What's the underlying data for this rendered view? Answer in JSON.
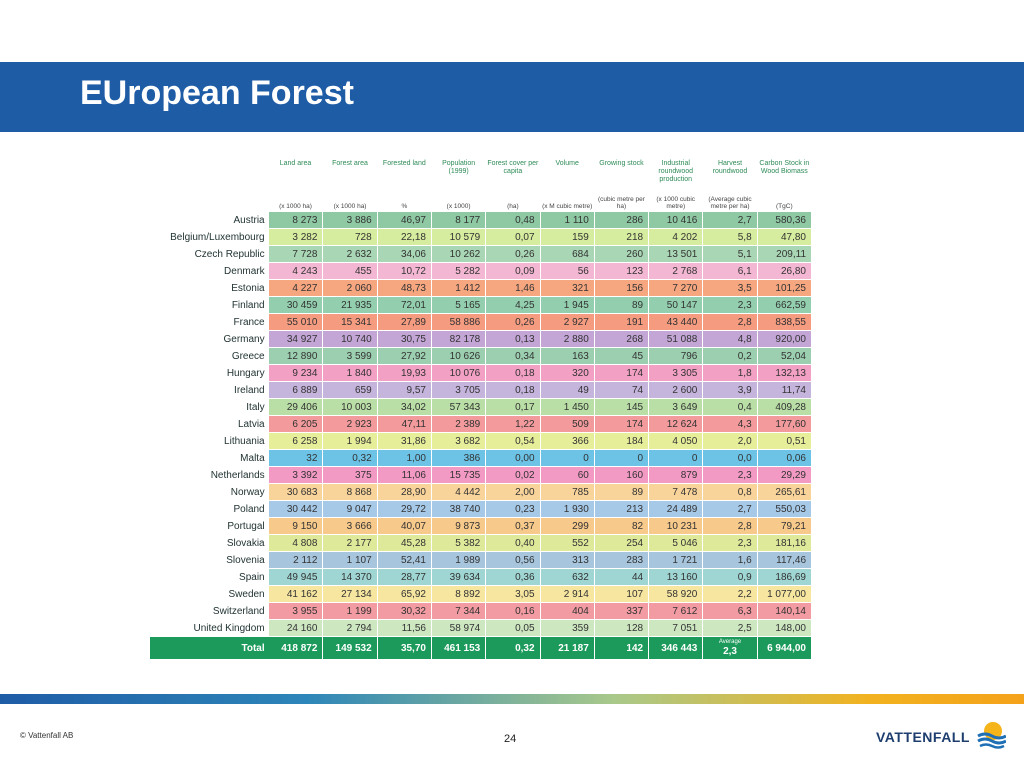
{
  "slide": {
    "title": "EUropean Forest",
    "copyright": "© Vattenfall AB",
    "page_number": "24",
    "logo_text": "VATTENFALL"
  },
  "table": {
    "headers": [
      {
        "label": "Land area",
        "unit": "(x 1000 ha)"
      },
      {
        "label": "Forest area",
        "unit": "(x 1000 ha)"
      },
      {
        "label": "Forested land",
        "unit": "%"
      },
      {
        "label": "Population (1999)",
        "unit": "(x 1000)"
      },
      {
        "label": "Forest cover per capita",
        "unit": "(ha)"
      },
      {
        "label": "Volume",
        "unit": "(x M cubic metre)"
      },
      {
        "label": "Growing stock",
        "unit": "(cubic metre per ha)"
      },
      {
        "label": "Industrial roundwood production",
        "unit": "(x 1000 cubic metre)"
      },
      {
        "label": "Harvest roundwood",
        "unit": "(Average cubic metre per ha)"
      },
      {
        "label": "Carbon Stock in Wood Biomass",
        "unit": "(TgC)"
      }
    ],
    "rows": [
      {
        "country": "Austria",
        "color": "#8fc9a3",
        "values": [
          "8 273",
          "3 886",
          "46,97",
          "8 177",
          "0,48",
          "1 110",
          "286",
          "10 416",
          "2,7",
          "580,36"
        ]
      },
      {
        "country": "Belgium/Luxembourg",
        "color": "#d6ec9e",
        "values": [
          "3 282",
          "728",
          "22,18",
          "10 579",
          "0,07",
          "159",
          "218",
          "4 202",
          "5,8",
          "47,80"
        ]
      },
      {
        "country": "Czech Republic",
        "color": "#a9d6b4",
        "values": [
          "7 728",
          "2 632",
          "34,06",
          "10 262",
          "0,26",
          "684",
          "260",
          "13 501",
          "5,1",
          "209,11"
        ]
      },
      {
        "country": "Denmark",
        "color": "#f4b7d3",
        "values": [
          "4 243",
          "455",
          "10,72",
          "5 282",
          "0,09",
          "56",
          "123",
          "2 768",
          "6,1",
          "26,80"
        ]
      },
      {
        "country": "Estonia",
        "color": "#f6a780",
        "values": [
          "4 227",
          "2 060",
          "48,73",
          "1 412",
          "1,46",
          "321",
          "156",
          "7 270",
          "3,5",
          "101,25"
        ]
      },
      {
        "country": "Finland",
        "color": "#93cfae",
        "values": [
          "30 459",
          "21 935",
          "72,01",
          "5 165",
          "4,25",
          "1 945",
          "89",
          "50 147",
          "2,3",
          "662,59"
        ]
      },
      {
        "country": "France",
        "color": "#f49b80",
        "values": [
          "55 010",
          "15 341",
          "27,89",
          "58 886",
          "0,26",
          "2 927",
          "191",
          "43 440",
          "2,8",
          "838,55"
        ]
      },
      {
        "country": "Germany",
        "color": "#c3a6d6",
        "values": [
          "34 927",
          "10 740",
          "30,75",
          "82 178",
          "0,13",
          "2 880",
          "268",
          "51 088",
          "4,8",
          "920,00"
        ]
      },
      {
        "country": "Greece",
        "color": "#9ccfb0",
        "values": [
          "12 890",
          "3 599",
          "27,92",
          "10 626",
          "0,34",
          "163",
          "45",
          "796",
          "0,2",
          "52,04"
        ]
      },
      {
        "country": "Hungary",
        "color": "#f2a0c4",
        "values": [
          "9 234",
          "1 840",
          "19,93",
          "10 076",
          "0,18",
          "320",
          "174",
          "3 305",
          "1,8",
          "132,13"
        ]
      },
      {
        "country": "Ireland",
        "color": "#c5b4dc",
        "values": [
          "6 889",
          "659",
          "9,57",
          "3 705",
          "0,18",
          "49",
          "74",
          "2 600",
          "3,9",
          "11,74"
        ]
      },
      {
        "country": "Italy",
        "color": "#b9dfa6",
        "values": [
          "29 406",
          "10 003",
          "34,02",
          "57 343",
          "0,17",
          "1 450",
          "145",
          "3 649",
          "0,4",
          "409,28"
        ]
      },
      {
        "country": "Latvia",
        "color": "#f29a9c",
        "values": [
          "6 205",
          "2 923",
          "47,11",
          "2 389",
          "1,22",
          "509",
          "174",
          "12 624",
          "4,3",
          "177,60"
        ]
      },
      {
        "country": "Lithuania",
        "color": "#e6ee9a",
        "values": [
          "6 258",
          "1 994",
          "31,86",
          "3 682",
          "0,54",
          "366",
          "184",
          "4 050",
          "2,0",
          "0,51"
        ]
      },
      {
        "country": "Malta",
        "color": "#6cc3e6",
        "values": [
          "32",
          "0,32",
          "1,00",
          "386",
          "0,00",
          "0",
          "0",
          "0",
          "0,0",
          "0,06"
        ]
      },
      {
        "country": "Netherlands",
        "color": "#f29ac4",
        "values": [
          "3 392",
          "375",
          "11,06",
          "15 735",
          "0,02",
          "60",
          "160",
          "879",
          "2,3",
          "29,29"
        ]
      },
      {
        "country": "Norway",
        "color": "#f9d49a",
        "values": [
          "30 683",
          "8 868",
          "28,90",
          "4 442",
          "2,00",
          "785",
          "89",
          "7 478",
          "0,8",
          "265,61"
        ]
      },
      {
        "country": "Poland",
        "color": "#a6c9e8",
        "values": [
          "30 442",
          "9 047",
          "29,72",
          "38 740",
          "0,23",
          "1 930",
          "213",
          "24 489",
          "2,7",
          "550,03"
        ]
      },
      {
        "country": "Portugal",
        "color": "#f7c98b",
        "values": [
          "9 150",
          "3 666",
          "40,07",
          "9 873",
          "0,37",
          "299",
          "82",
          "10 231",
          "2,8",
          "79,21"
        ]
      },
      {
        "country": "Slovakia",
        "color": "#dfe99a",
        "values": [
          "4 808",
          "2 177",
          "45,28",
          "5 382",
          "0,40",
          "552",
          "254",
          "5 046",
          "2,3",
          "181,16"
        ]
      },
      {
        "country": "Slovenia",
        "color": "#a7c6dd",
        "values": [
          "2 112",
          "1 107",
          "52,41",
          "1 989",
          "0,56",
          "313",
          "283",
          "1 721",
          "1,6",
          "117,46"
        ]
      },
      {
        "country": "Spain",
        "color": "#9fd6d3",
        "values": [
          "49 945",
          "14 370",
          "28,77",
          "39 634",
          "0,36",
          "632",
          "44",
          "13 160",
          "0,9",
          "186,69"
        ]
      },
      {
        "country": "Sweden",
        "color": "#f7e6a0",
        "values": [
          "41 162",
          "27 134",
          "65,92",
          "8 892",
          "3,05",
          "2 914",
          "107",
          "58 920",
          "2,2",
          "1 077,00"
        ]
      },
      {
        "country": "Switzerland",
        "color": "#f39ba2",
        "values": [
          "3 955",
          "1 199",
          "30,32",
          "7 344",
          "0,16",
          "404",
          "337",
          "7 612",
          "6,3",
          "140,14"
        ]
      },
      {
        "country": "United Kingdom",
        "color": "#cde7c1",
        "values": [
          "24 160",
          "2 794",
          "11,56",
          "58 974",
          "0,05",
          "359",
          "128",
          "7 051",
          "2,5",
          "148,00"
        ]
      }
    ],
    "total": {
      "label": "Total",
      "values": [
        "418 872",
        "149 532",
        "35,70",
        "461 153",
        "0,32",
        "21 187",
        "142",
        "346 443",
        "2,3",
        "6 944,00"
      ],
      "average_label": "Average"
    }
  }
}
